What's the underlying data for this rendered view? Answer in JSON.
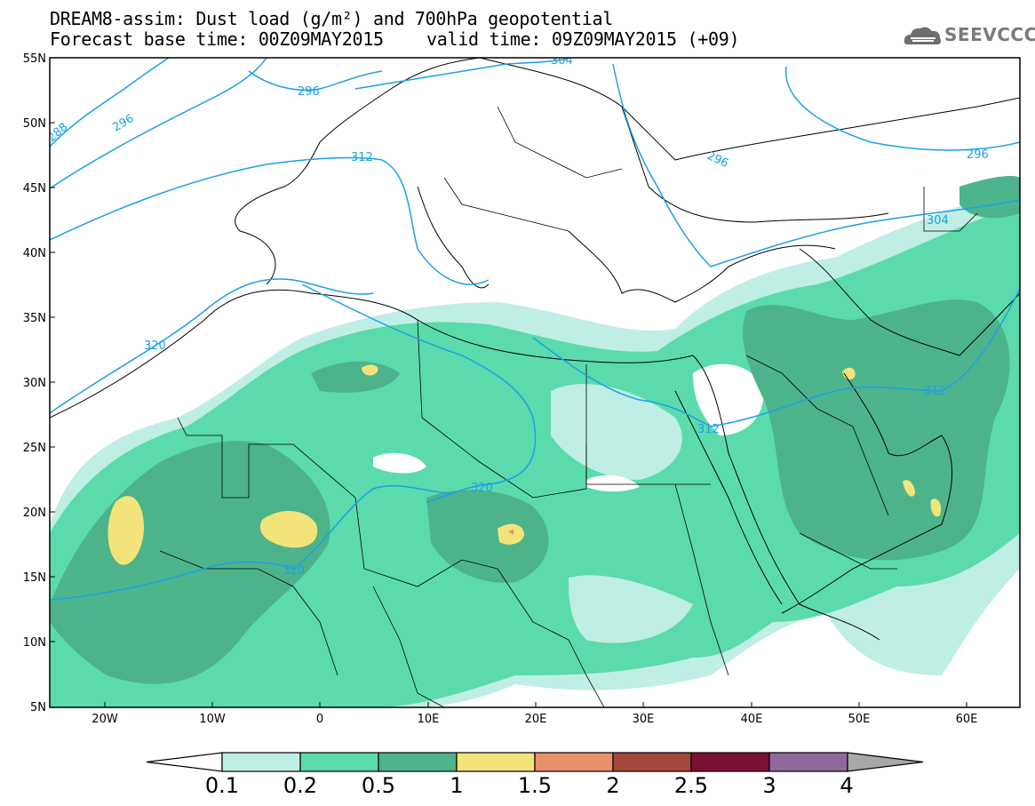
{
  "title": {
    "line1": "DREAM8-assim: Dust load (g/m²) and 700hPa geopotential",
    "line2": "Forecast base time: 00Z09MAY2015",
    "line3": "valid time: 09Z09MAY2015 (+09)"
  },
  "logo": {
    "text": "SEEVCCC",
    "icon": "cloud-logo-icon"
  },
  "axes": {
    "lat_labels": [
      "55N",
      "50N",
      "45N",
      "40N",
      "35N",
      "30N",
      "25N",
      "20N",
      "15N",
      "10N",
      "5N"
    ],
    "lon_labels": [
      "20W",
      "10W",
      "0",
      "10E",
      "20E",
      "30E",
      "40E",
      "50E",
      "60E"
    ]
  },
  "contour_labels": [
    "288",
    "296",
    "296",
    "304",
    "296",
    "312",
    "296",
    "304",
    "320",
    "312",
    "312",
    "320",
    "320"
  ],
  "colorbar": {
    "tick_labels": [
      "0.1",
      "0.2",
      "0.5",
      "1",
      "1.5",
      "2",
      "2.5",
      "3",
      "4"
    ],
    "colors": [
      "#ffffff",
      "#bfeee4",
      "#5bdbab",
      "#4db38b",
      "#f2e47a",
      "#e88f6b",
      "#a3483b",
      "#7b1233",
      "#8e6a9c",
      "#a8a8a8"
    ]
  },
  "colors": {
    "contour": "#1aa0e8",
    "dust_01": "#bfeee4",
    "dust_02": "#5bdbab",
    "dust_05": "#4db38b",
    "dust_1": "#f2e47a",
    "dust_15": "#e88f6b"
  }
}
